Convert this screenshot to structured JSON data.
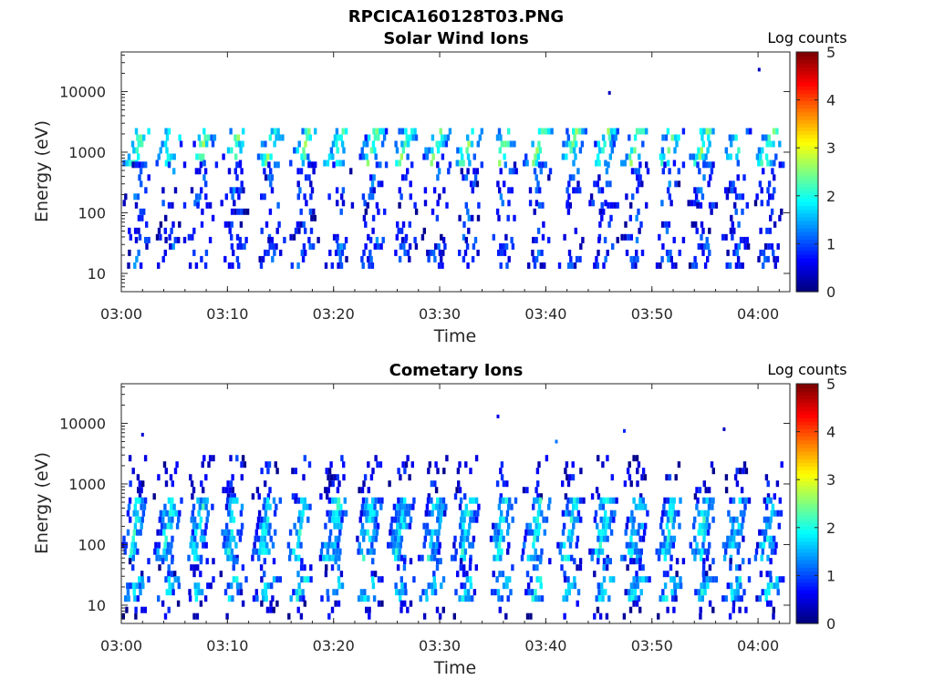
{
  "figure_title": "RPCICA160128T03.PNG",
  "chart_data": [
    {
      "type": "heatmap",
      "title": "Solar Wind Ions",
      "xlabel": "Time",
      "ylabel": "Energy (eV)",
      "x_ticks": [
        "03:00",
        "03:10",
        "03:20",
        "03:30",
        "03:40",
        "03:50",
        "04:00"
      ],
      "x_range_min": [
        0,
        63
      ],
      "y_ticks": [
        "10",
        "100",
        "1000",
        "10000"
      ],
      "y_scale": "log",
      "y_range_ev": [
        5,
        45000
      ],
      "colorbar": {
        "label": "Log counts",
        "ticks": [
          "0",
          "1",
          "2",
          "3",
          "4",
          "5"
        ],
        "range": [
          0,
          5
        ],
        "colormap": "jet"
      },
      "sweep_minutes": [
        1.1,
        4.2,
        7.2,
        10.3,
        13.6,
        16.8,
        20.0,
        23.2,
        26.2,
        29.2,
        32.2,
        35.6,
        38.8,
        42.0,
        45.0,
        48.0,
        51.2,
        54.3,
        57.5,
        60.6
      ],
      "bands": [
        {
          "e_low": 700,
          "e_high": 2500,
          "level": 2.3,
          "density": 0.55
        },
        {
          "e_low": 150,
          "e_high": 700,
          "level": 1.0,
          "density": 0.35
        },
        {
          "e_low": 40,
          "e_high": 150,
          "level": 0.9,
          "density": 0.3
        },
        {
          "e_low": 12,
          "e_high": 40,
          "level": 1.0,
          "density": 0.45
        }
      ],
      "outliers": [
        {
          "t": 46.0,
          "e": 9500,
          "level": 0.3
        },
        {
          "t": 60.1,
          "e": 23000,
          "level": 0.3
        }
      ]
    },
    {
      "type": "heatmap",
      "title": "Cometary Ions",
      "xlabel": "Time",
      "ylabel": "Energy (eV)",
      "x_ticks": [
        "03:00",
        "03:10",
        "03:20",
        "03:30",
        "03:40",
        "03:50",
        "04:00"
      ],
      "x_range_min": [
        0,
        63
      ],
      "y_ticks": [
        "10",
        "100",
        "1000",
        "10000"
      ],
      "y_scale": "log",
      "y_range_ev": [
        5,
        45000
      ],
      "colorbar": {
        "label": "Log counts",
        "ticks": [
          "0",
          "1",
          "2",
          "3",
          "4",
          "5"
        ],
        "range": [
          0,
          5
        ],
        "colormap": "jet"
      },
      "sweep_minutes": [
        0.8,
        3.9,
        6.9,
        10.0,
        13.2,
        16.4,
        19.6,
        22.8,
        25.8,
        28.9,
        32.0,
        35.4,
        38.6,
        41.8,
        44.9,
        48.0,
        51.2,
        54.3,
        57.4,
        60.6
      ],
      "bands": [
        {
          "e_low": 600,
          "e_high": 3000,
          "level": 0.6,
          "density": 0.25
        },
        {
          "e_low": 60,
          "e_high": 600,
          "level": 1.8,
          "density": 0.75
        },
        {
          "e_low": 30,
          "e_high": 60,
          "level": 1.0,
          "density": 0.4
        },
        {
          "e_low": 12,
          "e_high": 30,
          "level": 1.7,
          "density": 0.7
        },
        {
          "e_low": 6,
          "e_high": 12,
          "level": 0.4,
          "density": 0.2
        }
      ],
      "outliers": [
        {
          "t": 2.0,
          "e": 6500,
          "level": 0.4
        },
        {
          "t": 35.5,
          "e": 13000,
          "level": 0.5
        },
        {
          "t": 41.0,
          "e": 5000,
          "level": 1.2
        },
        {
          "t": 47.4,
          "e": 7500,
          "level": 0.8
        },
        {
          "t": 56.8,
          "e": 8000,
          "level": 0.3
        }
      ]
    }
  ]
}
